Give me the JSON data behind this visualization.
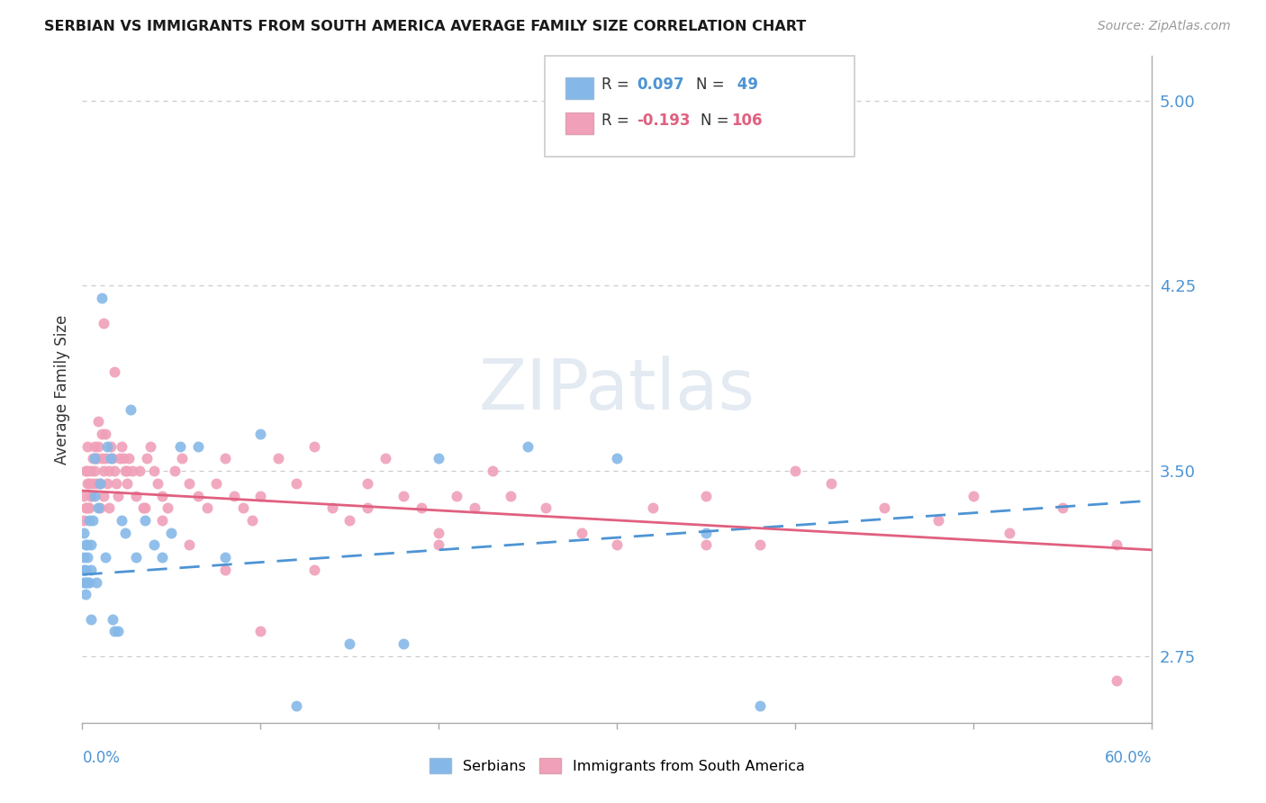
{
  "title": "SERBIAN VS IMMIGRANTS FROM SOUTH AMERICA AVERAGE FAMILY SIZE CORRELATION CHART",
  "source": "Source: ZipAtlas.com",
  "ylabel": "Average Family Size",
  "yticks": [
    2.75,
    3.5,
    4.25,
    5.0
  ],
  "ytick_color": "#4d94d4",
  "serbian_color": "#85b8e8",
  "south_am_color": "#f0a0b8",
  "trend_serbian_color": "#4d94d4",
  "trend_south_am_color": "#e06080",
  "background_color": "#ffffff",
  "grid_color": "#cccccc",
  "xmin": 0.0,
  "xmax": 0.6,
  "ymin": 2.48,
  "ymax": 5.18,
  "serbian_x": [
    0.001,
    0.001,
    0.001,
    0.001,
    0.002,
    0.002,
    0.002,
    0.002,
    0.003,
    0.003,
    0.003,
    0.004,
    0.004,
    0.005,
    0.005,
    0.005,
    0.006,
    0.007,
    0.007,
    0.008,
    0.009,
    0.01,
    0.011,
    0.013,
    0.014,
    0.016,
    0.017,
    0.018,
    0.02,
    0.022,
    0.024,
    0.027,
    0.03,
    0.035,
    0.04,
    0.045,
    0.05,
    0.055,
    0.065,
    0.08,
    0.1,
    0.12,
    0.15,
    0.18,
    0.2,
    0.25,
    0.3,
    0.35,
    0.38
  ],
  "serbian_y": [
    3.25,
    3.15,
    3.05,
    3.1,
    3.2,
    3.1,
    3.05,
    3.0,
    3.2,
    3.15,
    3.05,
    3.3,
    3.05,
    3.2,
    3.1,
    2.9,
    3.3,
    3.4,
    3.55,
    3.05,
    3.35,
    3.45,
    4.2,
    3.15,
    3.6,
    3.55,
    2.9,
    2.85,
    2.85,
    3.3,
    3.25,
    3.75,
    3.15,
    3.3,
    3.2,
    3.15,
    3.25,
    3.6,
    3.6,
    3.15,
    3.65,
    2.55,
    2.8,
    2.8,
    3.55,
    3.6,
    3.55,
    3.25,
    2.55
  ],
  "south_am_x": [
    0.001,
    0.001,
    0.002,
    0.002,
    0.003,
    0.003,
    0.003,
    0.004,
    0.004,
    0.005,
    0.005,
    0.006,
    0.006,
    0.007,
    0.007,
    0.008,
    0.008,
    0.009,
    0.009,
    0.01,
    0.01,
    0.011,
    0.011,
    0.012,
    0.012,
    0.013,
    0.013,
    0.014,
    0.015,
    0.015,
    0.016,
    0.017,
    0.018,
    0.019,
    0.02,
    0.021,
    0.022,
    0.023,
    0.024,
    0.025,
    0.026,
    0.028,
    0.03,
    0.032,
    0.034,
    0.036,
    0.038,
    0.04,
    0.042,
    0.045,
    0.048,
    0.052,
    0.056,
    0.06,
    0.065,
    0.07,
    0.075,
    0.08,
    0.085,
    0.09,
    0.095,
    0.1,
    0.11,
    0.12,
    0.13,
    0.14,
    0.15,
    0.16,
    0.17,
    0.18,
    0.19,
    0.2,
    0.21,
    0.22,
    0.23,
    0.24,
    0.26,
    0.28,
    0.3,
    0.32,
    0.35,
    0.38,
    0.4,
    0.42,
    0.45,
    0.48,
    0.5,
    0.52,
    0.55,
    0.58,
    0.003,
    0.005,
    0.008,
    0.012,
    0.018,
    0.025,
    0.035,
    0.045,
    0.06,
    0.08,
    0.1,
    0.13,
    0.16,
    0.2,
    0.35,
    0.58
  ],
  "south_am_y": [
    3.4,
    3.3,
    3.5,
    3.35,
    3.45,
    3.35,
    3.5,
    3.45,
    3.35,
    3.5,
    3.4,
    3.55,
    3.45,
    3.5,
    3.6,
    3.45,
    3.55,
    3.6,
    3.7,
    3.45,
    3.35,
    3.55,
    3.65,
    3.5,
    3.4,
    3.55,
    3.65,
    3.45,
    3.5,
    3.35,
    3.6,
    3.55,
    3.5,
    3.45,
    3.4,
    3.55,
    3.6,
    3.55,
    3.5,
    3.45,
    3.55,
    3.5,
    3.4,
    3.5,
    3.35,
    3.55,
    3.6,
    3.5,
    3.45,
    3.4,
    3.35,
    3.5,
    3.55,
    3.45,
    3.4,
    3.35,
    3.45,
    3.55,
    3.4,
    3.35,
    3.3,
    3.4,
    3.55,
    3.45,
    3.6,
    3.35,
    3.3,
    3.45,
    3.55,
    3.4,
    3.35,
    3.2,
    3.4,
    3.35,
    3.5,
    3.4,
    3.35,
    3.25,
    3.2,
    3.35,
    3.4,
    3.2,
    3.5,
    3.45,
    3.35,
    3.3,
    3.4,
    3.25,
    3.35,
    3.2,
    3.6,
    3.4,
    3.55,
    4.1,
    3.9,
    3.5,
    3.35,
    3.3,
    3.2,
    3.1,
    2.85,
    3.1,
    3.35,
    3.25,
    3.2,
    2.65
  ],
  "trend_serb_x0": 0.0,
  "trend_serb_x1": 0.6,
  "trend_serb_y0": 3.08,
  "trend_serb_y1": 3.38,
  "trend_sa_x0": 0.0,
  "trend_sa_x1": 0.6,
  "trend_sa_y0": 3.42,
  "trend_sa_y1": 3.18
}
